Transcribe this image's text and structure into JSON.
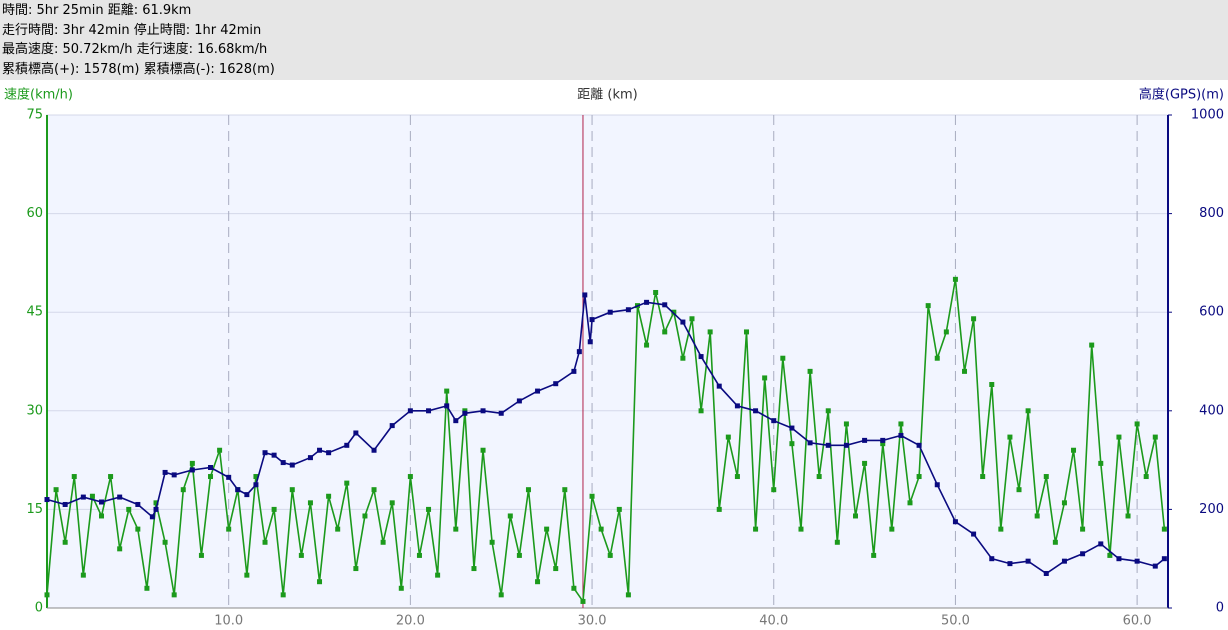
{
  "chart_data": {
    "type": "line",
    "summary": [
      "時間: 5hr 25min 距離: 61.9km",
      "走行時間: 3hr 42min 停止時間: 1hr 42min",
      "最高速度: 50.72km/h 走行速度: 16.68km/h",
      "累積標高(+): 1578(m) 累積標高(-): 1628(m)"
    ],
    "y_label": "速度(km/h)",
    "x_label": "距離 (km)",
    "y2_label": "高度(GPS)(m)",
    "xlim": [
      0,
      61.7
    ],
    "xticks": [
      {
        "value": 10,
        "label": "10.0"
      },
      {
        "value": 20,
        "label": "20.0"
      },
      {
        "value": 30,
        "label": "30.0"
      },
      {
        "value": 40,
        "label": "40.0"
      },
      {
        "value": 50,
        "label": "50.0"
      },
      {
        "value": 60,
        "label": "60.0"
      }
    ],
    "ylim": [
      0,
      75
    ],
    "yticks": [
      0,
      15,
      30,
      45,
      60,
      75
    ],
    "y2lim": [
      0,
      1000
    ],
    "y2ticks": [
      0,
      200,
      400,
      600,
      800,
      1000
    ],
    "grid": true,
    "cursor_x": 29.5,
    "cursor_color": "#b0204a",
    "series": [
      {
        "name": "速度",
        "color": "#1c9a1c",
        "axis": "y",
        "x": [
          0,
          0.5,
          1,
          1.5,
          2,
          2.5,
          3,
          3.5,
          4,
          4.5,
          5,
          5.5,
          6,
          6.5,
          7,
          7.5,
          8,
          8.5,
          9,
          9.5,
          10,
          10.5,
          11,
          11.5,
          12,
          12.5,
          13,
          13.5,
          14,
          14.5,
          15,
          15.5,
          16,
          16.5,
          17,
          17.5,
          18,
          18.5,
          19,
          19.5,
          20,
          20.5,
          21,
          21.5,
          22,
          22.5,
          23,
          23.5,
          24,
          24.5,
          25,
          25.5,
          26,
          26.5,
          27,
          27.5,
          28,
          28.5,
          29,
          29.5,
          30,
          30.5,
          31,
          31.5,
          32,
          32.5,
          33,
          33.5,
          34,
          34.5,
          35,
          35.5,
          36,
          36.5,
          37,
          37.5,
          38,
          38.5,
          39,
          39.5,
          40,
          40.5,
          41,
          41.5,
          42,
          42.5,
          43,
          43.5,
          44,
          44.5,
          45,
          45.5,
          46,
          46.5,
          47,
          47.5,
          48,
          48.5,
          49,
          49.5,
          50,
          50.5,
          51,
          51.5,
          52,
          52.5,
          53,
          53.5,
          54,
          54.5,
          55,
          55.5,
          56,
          56.5,
          57,
          57.5,
          58,
          58.5,
          59,
          59.5,
          60,
          60.5,
          61,
          61.5
        ],
        "values": [
          2,
          18,
          10,
          20,
          5,
          17,
          14,
          20,
          9,
          15,
          12,
          3,
          16,
          10,
          2,
          18,
          22,
          8,
          20,
          24,
          12,
          18,
          5,
          20,
          10,
          15,
          2,
          18,
          8,
          16,
          4,
          17,
          12,
          19,
          6,
          14,
          18,
          10,
          16,
          3,
          20,
          8,
          15,
          5,
          33,
          12,
          30,
          6,
          24,
          10,
          2,
          14,
          8,
          18,
          4,
          12,
          6,
          18,
          3,
          1,
          17,
          12,
          8,
          15,
          2,
          46,
          40,
          48,
          42,
          45,
          38,
          44,
          30,
          42,
          15,
          26,
          20,
          42,
          12,
          35,
          18,
          38,
          25,
          12,
          36,
          20,
          30,
          10,
          28,
          14,
          22,
          8,
          25,
          12,
          28,
          16,
          20,
          46,
          38,
          42,
          50,
          36,
          44,
          20,
          34,
          12,
          26,
          18,
          30,
          14,
          20,
          10,
          16,
          24,
          12,
          40,
          22,
          8,
          26,
          14,
          28,
          20,
          26,
          12
        ]
      },
      {
        "name": "高度",
        "color": "#0a0a80",
        "axis": "y2",
        "x": [
          0,
          1,
          2,
          3,
          4,
          5,
          5.8,
          6,
          6.5,
          7,
          8,
          9,
          10,
          10.5,
          11,
          11.5,
          12,
          12.5,
          13,
          13.5,
          14.5,
          15,
          15.5,
          16.5,
          17,
          18,
          19,
          20,
          21,
          22,
          22.5,
          23,
          24,
          25,
          26,
          27,
          28,
          29,
          29.3,
          29.6,
          29.9,
          30,
          31,
          32,
          33,
          34,
          35,
          36,
          37,
          38,
          39,
          40,
          41,
          42,
          43,
          44,
          45,
          46,
          47,
          48,
          49,
          50,
          51,
          52,
          53,
          54,
          55,
          56,
          57,
          58,
          59,
          60,
          61,
          61.5
        ],
        "values": [
          220,
          210,
          225,
          215,
          225,
          210,
          185,
          200,
          275,
          270,
          280,
          285,
          265,
          240,
          230,
          250,
          315,
          310,
          295,
          290,
          305,
          320,
          315,
          330,
          355,
          320,
          370,
          400,
          400,
          410,
          380,
          395,
          400,
          395,
          420,
          440,
          455,
          480,
          520,
          635,
          540,
          585,
          600,
          605,
          620,
          615,
          580,
          510,
          450,
          410,
          400,
          380,
          365,
          335,
          330,
          330,
          340,
          340,
          350,
          330,
          250,
          175,
          150,
          100,
          90,
          95,
          70,
          95,
          110,
          130,
          100,
          95,
          85,
          100
        ]
      }
    ]
  }
}
